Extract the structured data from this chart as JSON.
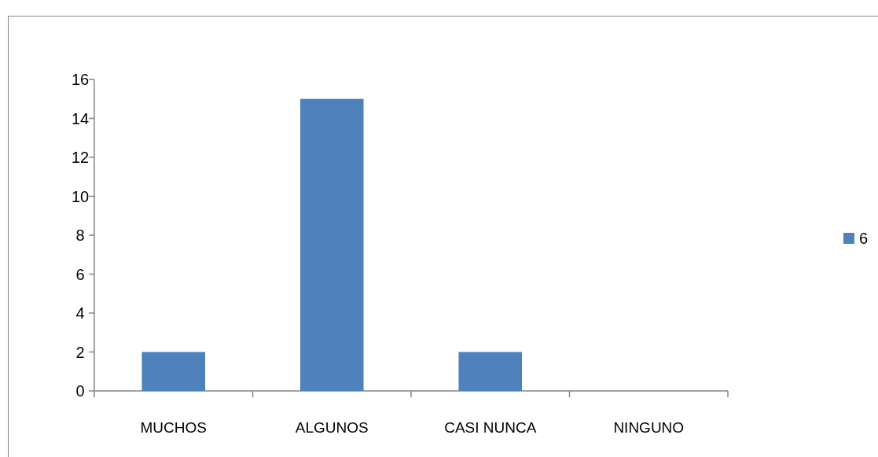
{
  "chart_data": {
    "type": "bar",
    "categories": [
      "MUCHOS",
      "ALGUNOS",
      "CASI NUNCA",
      "NINGUNO"
    ],
    "series": [
      {
        "name": "6",
        "color": "#4f81bd",
        "values": [
          2,
          15,
          2,
          0
        ]
      }
    ],
    "ylim": [
      0,
      16
    ],
    "yticks": [
      0,
      2,
      4,
      6,
      8,
      10,
      12,
      14,
      16
    ],
    "legend": "right"
  }
}
